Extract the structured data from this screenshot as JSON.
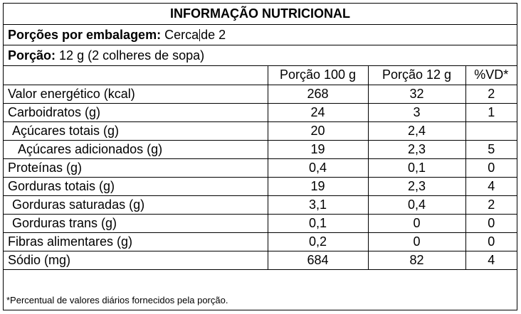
{
  "title": "INFORMAÇÃO NUTRICIONAL",
  "portions_per_package": {
    "label": "Porções por embalagem:",
    "value_before_cursor": "Cerca",
    "value_after_cursor": "de 2"
  },
  "portion": {
    "label": "Porção:",
    "value": "12 g (2 colheres de sopa)"
  },
  "columns": [
    "Porção 100 g",
    "Porção 12 g",
    "%VD*"
  ],
  "rows": [
    {
      "name": "Valor energético (kcal)",
      "v100": "268",
      "v12": "32",
      "vd": "2"
    },
    {
      "name": "Carboidratos (g)",
      "v100": "24",
      "v12": "3",
      "vd": "1"
    },
    {
      "name": "Açúcares totais (g)",
      "v100": "20",
      "v12": "2,4",
      "vd": ""
    },
    {
      "name": "Açúcares adicionados (g)",
      "v100": "19",
      "v12": "2,3",
      "vd": "5"
    },
    {
      "name": "Proteínas (g)",
      "v100": "0,4",
      "v12": "0,1",
      "vd": "0"
    },
    {
      "name": "Gorduras totais (g)",
      "v100": "19",
      "v12": "2,3",
      "vd": "4"
    },
    {
      "name": "Gorduras saturadas (g)",
      "v100": "3,1",
      "v12": "0,4",
      "vd": "2"
    },
    {
      "name": "Gorduras trans (g)",
      "v100": "0,1",
      "v12": "0",
      "vd": "0"
    },
    {
      "name": "Fibras alimentares (g)",
      "v100": "0,2",
      "v12": "0",
      "vd": "0"
    },
    {
      "name": "Sódio (mg)",
      "v100": "684",
      "v12": "82",
      "vd": "4"
    }
  ],
  "footnote": "*Percentual de valores diários fornecidos pela porção."
}
